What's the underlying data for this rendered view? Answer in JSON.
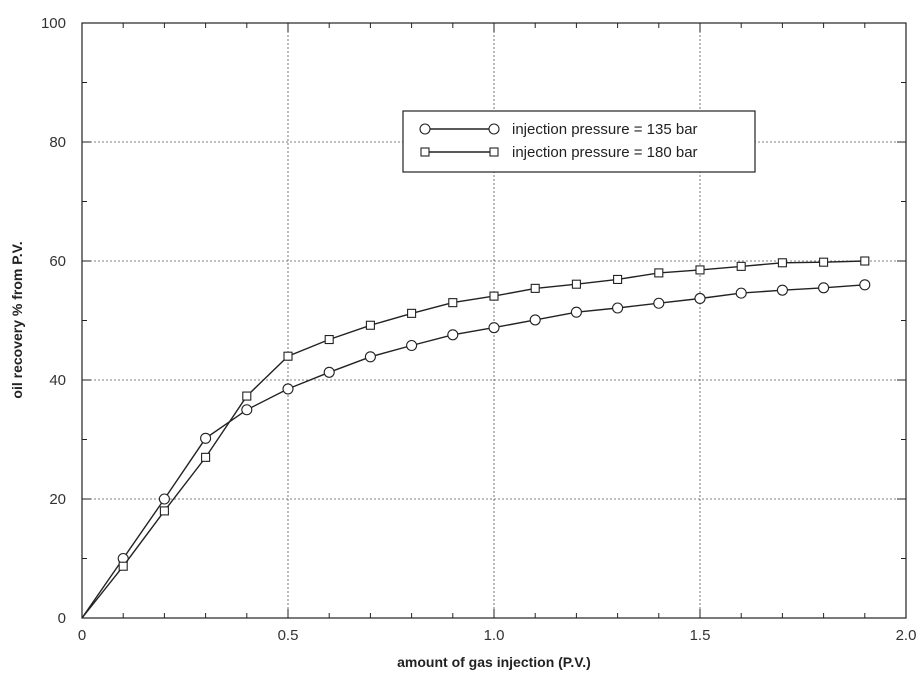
{
  "chart_data": {
    "type": "line",
    "title": "",
    "xlabel": "amount of gas injection (P.V.)",
    "ylabel": "oil recovery % from P.V.",
    "xlim": [
      0,
      2.0
    ],
    "ylim": [
      0,
      100
    ],
    "x_ticks": [
      0,
      0.5,
      1.0,
      1.5,
      2.0
    ],
    "x_tick_labels": [
      "0",
      "0.5",
      "1.0",
      "1.5",
      "2.0"
    ],
    "y_ticks": [
      0,
      20,
      40,
      60,
      80,
      100
    ],
    "y_tick_labels": [
      "0",
      "20",
      "40",
      "60",
      "80",
      "100"
    ],
    "grid": true,
    "legend_position": "top-right",
    "series": [
      {
        "name": "injection pressure = 135 bar",
        "marker": "circle",
        "x": [
          0,
          0.1,
          0.2,
          0.3,
          0.4,
          0.5,
          0.6,
          0.7,
          0.8,
          0.9,
          1.0,
          1.1,
          1.2,
          1.3,
          1.4,
          1.5,
          1.6,
          1.7,
          1.8,
          1.9
        ],
        "y": [
          0,
          10.0,
          20.0,
          30.2,
          35.0,
          38.5,
          41.3,
          43.9,
          45.8,
          47.6,
          48.8,
          50.1,
          51.4,
          52.1,
          52.9,
          53.7,
          54.6,
          55.1,
          55.5,
          56.0
        ]
      },
      {
        "name": "injection pressure = 180 bar",
        "marker": "square",
        "x": [
          0,
          0.1,
          0.2,
          0.3,
          0.4,
          0.5,
          0.6,
          0.7,
          0.8,
          0.9,
          1.0,
          1.1,
          1.2,
          1.3,
          1.4,
          1.5,
          1.6,
          1.7,
          1.8,
          1.9
        ],
        "y": [
          0,
          8.7,
          18.0,
          27.0,
          37.3,
          44.0,
          46.8,
          49.2,
          51.2,
          53.0,
          54.1,
          55.4,
          56.1,
          56.9,
          58.0,
          58.5,
          59.1,
          59.7,
          59.8,
          60.0
        ]
      }
    ]
  }
}
